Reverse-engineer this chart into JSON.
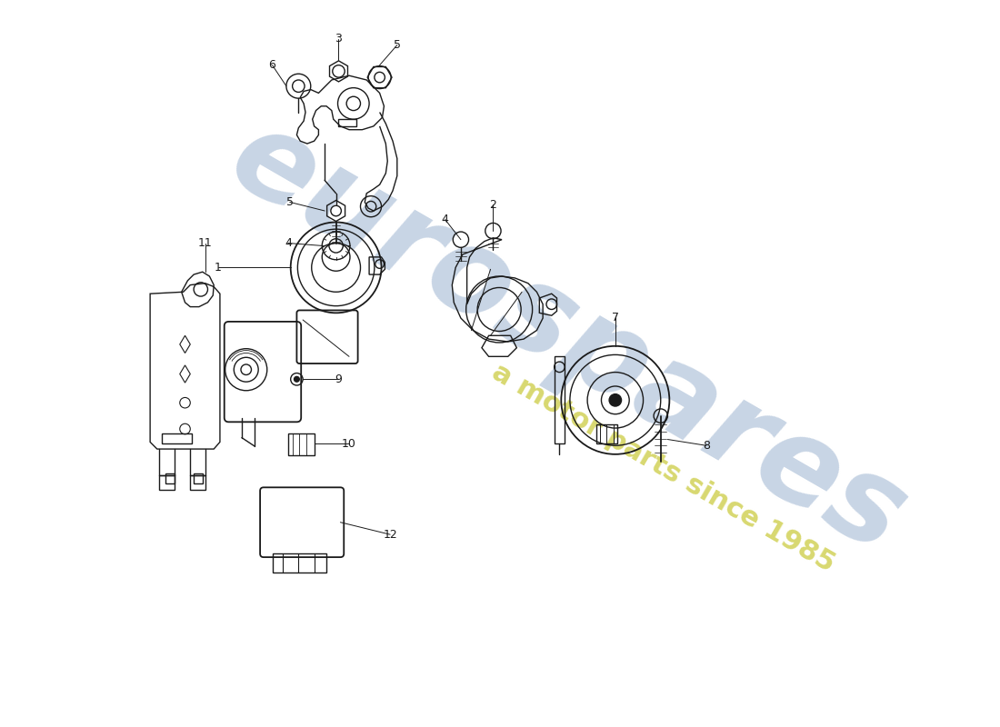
{
  "background_color": "#ffffff",
  "line_color": "#1a1a1a",
  "watermark_color": "#c8d5e5",
  "watermark_color2": "#d8d870",
  "fig_width": 11.0,
  "fig_height": 8.0,
  "dpi": 100,
  "label_fontsize": 9,
  "line_width": 1.0
}
